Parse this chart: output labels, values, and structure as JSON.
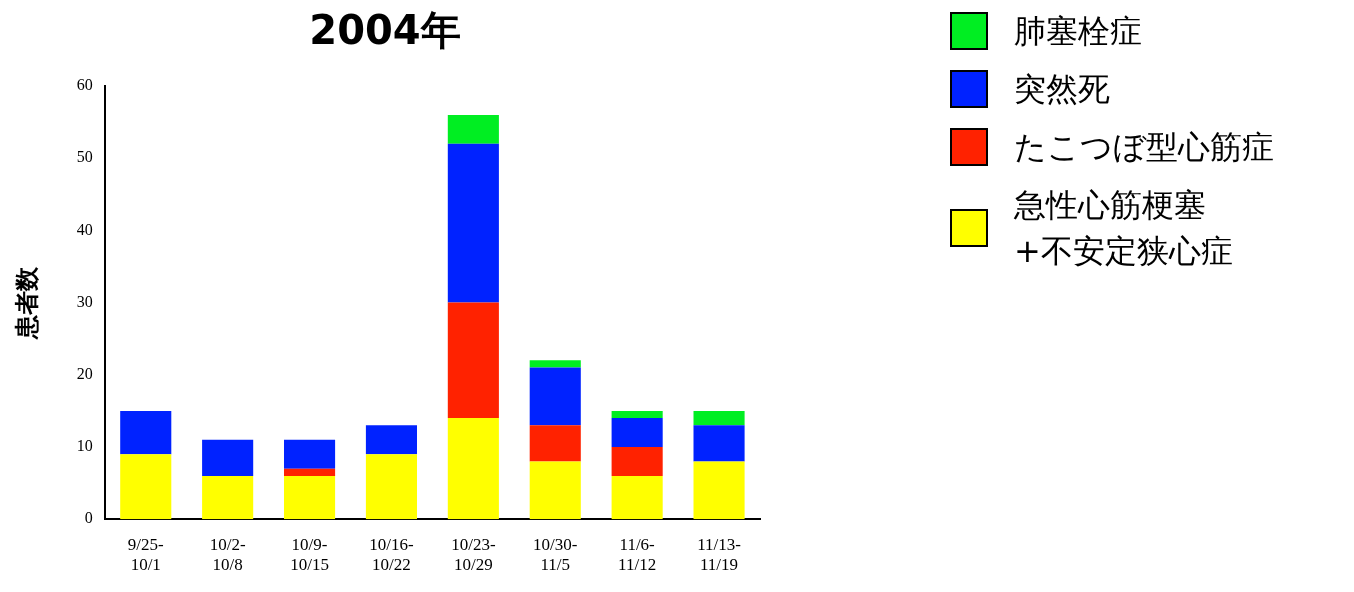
{
  "chart_data": {
    "type": "bar",
    "title": "2004年",
    "ylabel": "患者数",
    "stacked": true,
    "legend": "right",
    "categories": [
      "9/25-10/1",
      "10/2-10/8",
      "10/9-10/15",
      "10/16-10/22",
      "10/23-10/29",
      "10/30-11/5",
      "11/6-11/12",
      "11/13-11/19"
    ],
    "series": [
      {
        "name": "急性心筋梗塞+不安定狭心症",
        "color": "#ffff00",
        "values": [
          9,
          6,
          6,
          9,
          14,
          8,
          6,
          8
        ]
      },
      {
        "name": "たこつぼ型心筋症",
        "color": "#ff2200",
        "values": [
          0,
          0,
          1,
          0,
          16,
          5,
          4,
          0
        ]
      },
      {
        "name": "突然死",
        "color": "#0022ff",
        "values": [
          6,
          5,
          4,
          4,
          22,
          8,
          4,
          5
        ]
      },
      {
        "name": "肺塞栓症",
        "color": "#00ee22",
        "values": [
          0,
          0,
          0,
          0,
          4,
          1,
          1,
          2
        ]
      }
    ],
    "ylim": [
      0,
      60
    ],
    "yticks": [
      0,
      10,
      20,
      30,
      40,
      50,
      60
    ]
  }
}
